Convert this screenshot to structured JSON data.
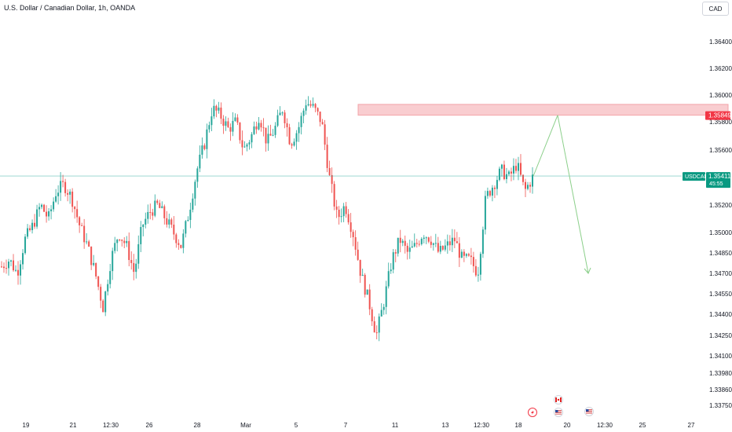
{
  "header": {
    "title": "U.S. Dollar / Canadian Dollar, 1h, OANDA",
    "currency_button": "CAD"
  },
  "colors": {
    "up": "#26a69a",
    "down": "#ef5350",
    "zone_fill": "#f9cdd0",
    "zone_line": "#f3a4a9",
    "price_line": "#26a69a",
    "arrow": "#8bcf8a",
    "zone_label_bg": "#f23645",
    "price_label_bg": "#089981"
  },
  "price_label": {
    "symbol": "USDCAD",
    "price": "1.35411",
    "countdown": "45:55"
  },
  "zone_label": {
    "price": "1.35849"
  },
  "icons": [
    "lightning-event-icon",
    "canada-flag-icon",
    "us-flag-icon",
    "us-flag-icon"
  ],
  "chart_data": {
    "type": "candlestick",
    "title": "U.S. Dollar / Canadian Dollar, 1h, OANDA",
    "y_ticks": [
      "1.36400",
      "1.36200",
      "1.36000",
      "1.35800",
      "1.35600",
      "1.35200",
      "1.35000",
      "1.34850",
      "1.34700",
      "1.34550",
      "1.34400",
      "1.34250",
      "1.34100",
      "1.33980",
      "1.33860",
      "1.33750"
    ],
    "x_ticks": [
      "19",
      "21",
      "12:30",
      "26",
      "28",
      "Mar",
      "5",
      "7",
      "11",
      "13",
      "12:30",
      "18",
      "20",
      "12:30",
      "25",
      "27"
    ],
    "current_price": 1.35411,
    "resistance_zone": [
      1.35849,
      1.3593
    ],
    "projection": [
      [
        1.3541,
        1.35849
      ],
      [
        1.35849,
        1.347
      ]
    ],
    "price_path": [
      1.3475,
      1.348,
      1.347,
      1.3495,
      1.3505,
      1.352,
      1.351,
      1.353,
      1.3535,
      1.3525,
      1.3505,
      1.349,
      1.347,
      1.3445,
      1.348,
      1.35,
      1.349,
      1.347,
      1.3505,
      1.3515,
      1.352,
      1.351,
      1.35,
      1.349,
      1.3515,
      1.3545,
      1.3565,
      1.359,
      1.3585,
      1.3575,
      1.358,
      1.356,
      1.357,
      1.3585,
      1.3565,
      1.3575,
      1.359,
      1.3565,
      1.3575,
      1.3595,
      1.359,
      1.358,
      1.354,
      1.351,
      1.352,
      1.35,
      1.347,
      1.345,
      1.3425,
      1.345,
      1.348,
      1.3495,
      1.3485,
      1.349,
      1.35,
      1.3495,
      1.3485,
      1.349,
      1.3495,
      1.348,
      1.348,
      1.347,
      1.3525,
      1.3535,
      1.3545,
      1.354,
      1.355,
      1.353,
      1.354
    ]
  }
}
